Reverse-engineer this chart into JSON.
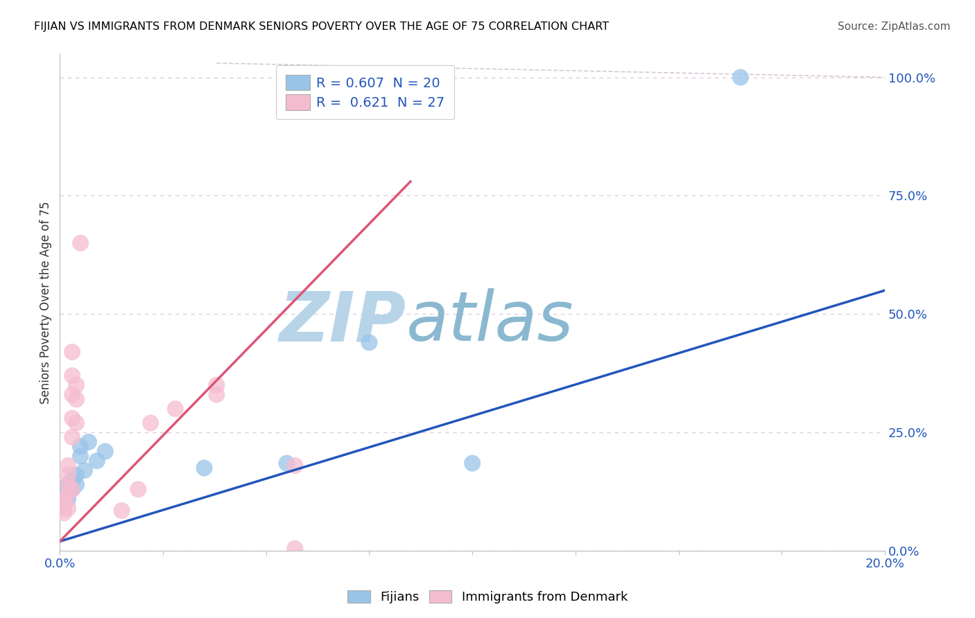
{
  "title": "FIJIAN VS IMMIGRANTS FROM DENMARK SENIORS POVERTY OVER THE AGE OF 75 CORRELATION CHART",
  "source": "Source: ZipAtlas.com",
  "ylabel": "Seniors Poverty Over the Age of 75",
  "watermark_zip": "ZIP",
  "watermark_atlas": "atlas",
  "xlim": [
    0,
    0.2
  ],
  "ylim": [
    0,
    1.05
  ],
  "xtick_positions": [
    0.0,
    0.025,
    0.05,
    0.075,
    0.1,
    0.125,
    0.15,
    0.175,
    0.2
  ],
  "xtick_labels": [
    "0.0%",
    "",
    "",
    "",
    "",
    "",
    "",
    "",
    "20.0%"
  ],
  "ytick_positions": [
    0.0,
    0.25,
    0.5,
    0.75,
    1.0
  ],
  "ytick_labels": [
    "0.0%",
    "25.0%",
    "50.0%",
    "75.0%",
    "100.0%"
  ],
  "fijians_color": "#99c4e8",
  "denmark_color": "#f5bcd0",
  "fijians_line_color": "#2255bb",
  "denmark_line_color": "#dd5577",
  "background_color": "#ffffff",
  "grid_color": "#ddd0dd",
  "title_color": "#000000",
  "source_color": "#555555",
  "watermark_zip_color": "#c8dff0",
  "watermark_atlas_color": "#b0c8d8",
  "fijians_R": 0.607,
  "fijians_N": 20,
  "denmark_R": 0.621,
  "denmark_N": 27,
  "legend_color": "#2255bb",
  "fijians_scatter": [
    [
      0.001,
      0.13
    ],
    [
      0.001,
      0.1
    ],
    [
      0.002,
      0.12
    ],
    [
      0.002,
      0.14
    ],
    [
      0.002,
      0.11
    ],
    [
      0.003,
      0.13
    ],
    [
      0.003,
      0.15
    ],
    [
      0.004,
      0.14
    ],
    [
      0.004,
      0.16
    ],
    [
      0.005,
      0.2
    ],
    [
      0.005,
      0.22
    ],
    [
      0.006,
      0.17
    ],
    [
      0.007,
      0.23
    ],
    [
      0.009,
      0.19
    ],
    [
      0.011,
      0.21
    ],
    [
      0.035,
      0.175
    ],
    [
      0.055,
      0.185
    ],
    [
      0.075,
      0.44
    ],
    [
      0.1,
      0.185
    ],
    [
      0.165,
      1.0
    ]
  ],
  "denmark_scatter": [
    [
      0.001,
      0.08
    ],
    [
      0.001,
      0.1
    ],
    [
      0.001,
      0.09
    ],
    [
      0.001,
      0.11
    ],
    [
      0.002,
      0.09
    ],
    [
      0.002,
      0.12
    ],
    [
      0.002,
      0.14
    ],
    [
      0.002,
      0.16
    ],
    [
      0.002,
      0.18
    ],
    [
      0.003,
      0.13
    ],
    [
      0.003,
      0.24
    ],
    [
      0.003,
      0.28
    ],
    [
      0.003,
      0.33
    ],
    [
      0.003,
      0.37
    ],
    [
      0.003,
      0.42
    ],
    [
      0.004,
      0.35
    ],
    [
      0.004,
      0.32
    ],
    [
      0.004,
      0.27
    ],
    [
      0.005,
      0.65
    ],
    [
      0.015,
      0.085
    ],
    [
      0.019,
      0.13
    ],
    [
      0.022,
      0.27
    ],
    [
      0.028,
      0.3
    ],
    [
      0.038,
      0.33
    ],
    [
      0.038,
      0.35
    ],
    [
      0.057,
      0.005
    ],
    [
      0.057,
      0.18
    ]
  ],
  "fijians_line": {
    "x0": 0.0,
    "y0": 0.02,
    "x1": 0.2,
    "y1": 0.55
  },
  "denmark_line": {
    "x0": 0.0,
    "y0": 0.02,
    "x1": 0.085,
    "y1": 0.78
  },
  "diag_line": {
    "x0": 0.038,
    "y0": 1.02,
    "x1": 0.2,
    "y1": 1.0
  }
}
